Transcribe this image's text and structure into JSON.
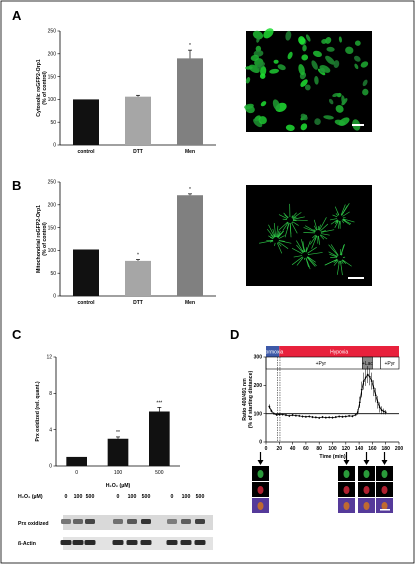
{
  "panels": {
    "A": "A",
    "B": "B",
    "C": "C",
    "D": "D"
  },
  "colors": {
    "bar_black": "#111111",
    "bar_light": "#a6a6a6",
    "bar_gray": "#808080",
    "normoxia": "#3d59a8",
    "hypoxia": "#e8213c",
    "lac_box": "#8a8a8a",
    "micro_bg": "#000000",
    "micro_green": "#2fcf4a"
  },
  "chart_data": [
    {
      "id": "A",
      "type": "bar",
      "categories": [
        "control",
        "DTT",
        "Men"
      ],
      "values": [
        100,
        106,
        190
      ],
      "errors": [
        0,
        3,
        18
      ],
      "significance": [
        "",
        "",
        "*"
      ],
      "ylabel_lines": [
        "Cytosolic roGFP2-Orp1",
        "(% of control)"
      ],
      "ylim": [
        0,
        250
      ],
      "yticks": [
        0,
        50,
        100,
        150,
        200,
        250
      ],
      "bar_colors": [
        "#111111",
        "#a6a6a6",
        "#808080"
      ]
    },
    {
      "id": "B",
      "type": "bar",
      "categories": [
        "control",
        "DTT",
        "Men"
      ],
      "values": [
        102,
        77,
        221
      ],
      "errors": [
        0,
        3,
        3
      ],
      "significance": [
        "",
        "*",
        "*"
      ],
      "ylabel_lines": [
        "Mitochondrial roGFP2-Orp1",
        "(% of control)"
      ],
      "ylim": [
        0,
        250
      ],
      "yticks": [
        0,
        50,
        100,
        150,
        200,
        250
      ],
      "bar_colors": [
        "#111111",
        "#a6a6a6",
        "#808080"
      ]
    },
    {
      "id": "C",
      "type": "bar",
      "categories": [
        "0",
        "100",
        "500"
      ],
      "values": [
        1,
        3,
        6
      ],
      "errors": [
        0,
        0.2,
        0.45
      ],
      "significance": [
        "",
        "**",
        "***"
      ],
      "xlabel": "H₂O₂ (µM)",
      "ylabel": "Prx oxidized (rel. quant.)",
      "ylim": [
        0,
        12
      ],
      "yticks": [
        0,
        4,
        8,
        12
      ],
      "bar_colors": [
        "#111111",
        "#111111",
        "#111111"
      ]
    },
    {
      "id": "D",
      "type": "line",
      "xlabel": "Time (min)",
      "ylabel_lines": [
        "Ratio 400/491 nm",
        "(% of starting distance)"
      ],
      "xlim": [
        0,
        200
      ],
      "ylim": [
        0,
        300
      ],
      "xticks": [
        0,
        20,
        40,
        60,
        80,
        100,
        120,
        140,
        160,
        180,
        200
      ],
      "yticks": [
        0,
        100,
        200,
        300
      ],
      "reference_line": 100,
      "x": [
        5,
        8,
        12,
        16,
        20,
        25,
        30,
        35,
        40,
        45,
        50,
        55,
        60,
        65,
        70,
        75,
        80,
        85,
        90,
        95,
        100,
        105,
        110,
        115,
        120,
        125,
        130,
        135,
        138,
        141,
        144,
        147,
        150,
        153,
        156,
        159,
        162,
        165,
        168,
        171,
        174,
        177,
        180
      ],
      "y": [
        125,
        110,
        100,
        96,
        97,
        97,
        95,
        92,
        95,
        93,
        92,
        90,
        89,
        90,
        88,
        87,
        85,
        88,
        86,
        87,
        86,
        88,
        90,
        89,
        90,
        92,
        91,
        96,
        106,
        140,
        185,
        215,
        228,
        238,
        230,
        215,
        190,
        165,
        140,
        122,
        112,
        108,
        105
      ],
      "err": [
        8,
        6,
        4,
        4,
        4,
        4,
        4,
        4,
        4,
        4,
        4,
        4,
        4,
        4,
        4,
        4,
        4,
        4,
        4,
        4,
        4,
        4,
        4,
        4,
        4,
        4,
        4,
        5,
        10,
        20,
        28,
        30,
        30,
        30,
        30,
        30,
        28,
        25,
        22,
        18,
        14,
        10,
        8
      ],
      "bands": {
        "normoxia_label": "Normoxia",
        "hypoxia_label": "Hypoxia",
        "pyr1_label": "+Pyr",
        "lac_label": "+Lac",
        "pyr2_label": "+Pyr"
      }
    }
  ],
  "western": {
    "header": "H₂O₂ (µM)",
    "concentrations": [
      "0",
      "100",
      "500",
      "0",
      "100",
      "500",
      "0",
      "100",
      "500"
    ],
    "rows": [
      "Prx oxidized",
      "ß-Actin"
    ]
  }
}
